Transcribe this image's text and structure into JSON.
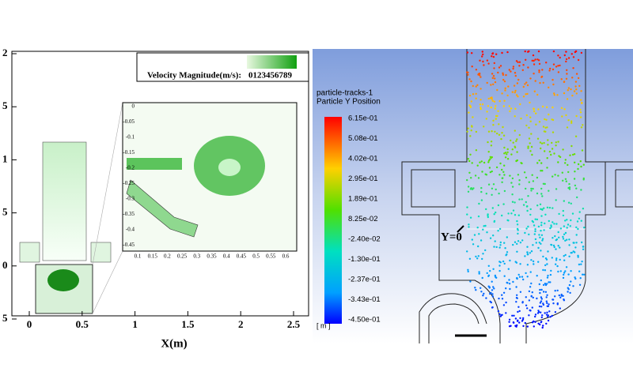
{
  "left_panel": {
    "yticks": [
      "2",
      "5",
      "1",
      "5",
      "0",
      "5"
    ],
    "xticks": [
      "0",
      "0.5",
      "1",
      "1.5",
      "2",
      "2.5"
    ],
    "xlabel": "X(m)",
    "legend": {
      "title": "Velocity Magnitude(m/s):",
      "scale": "0123456789"
    },
    "inset": {
      "yticks": [
        "0",
        "-0.05",
        "-0.1",
        "-0.15",
        "-0.2",
        "-0.25",
        "-0.3",
        "-0.35",
        "-0.4",
        "-0.45"
      ],
      "xticks": [
        "0.1",
        "0.15",
        "0.2",
        "0.25",
        "0.3",
        "0.35",
        "0.4",
        "0.45",
        "0.5",
        "0.55",
        "0.6"
      ]
    }
  },
  "right_panel": {
    "legend_title": [
      "particle-tracks-1",
      "Particle Y Position"
    ],
    "colorbar_labels": [
      "6.15e-01",
      "5.08e-01",
      "4.02e-01",
      "2.95e-01",
      "1.89e-01",
      "8.25e-02",
      "-2.40e-02",
      "-1.30e-01",
      "-2.37e-01",
      "-3.43e-01",
      "-4.50e-01"
    ],
    "unit": "[ m ]",
    "annotation": "Y=0"
  }
}
